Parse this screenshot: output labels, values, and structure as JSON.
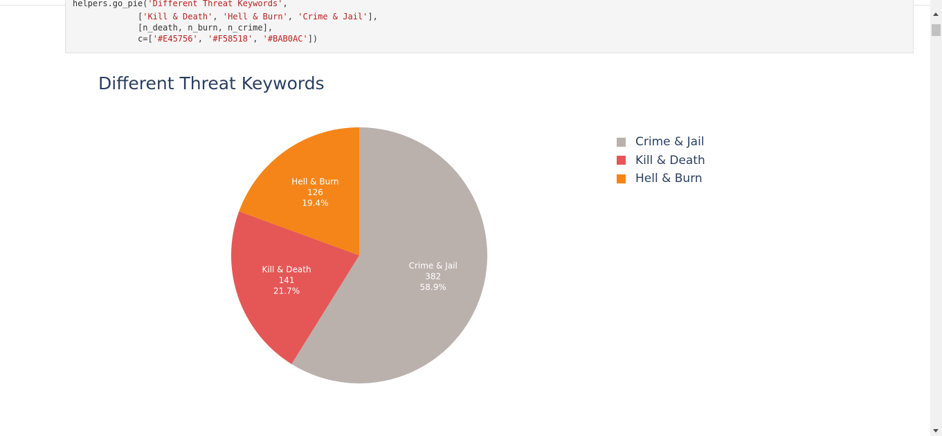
{
  "code": {
    "line1_prefix": "helpers.go_pie(",
    "line1_string": "'Different Threat Keywords'",
    "line1_suffix": ",",
    "line2_open": "[",
    "line2_s1": "'Kill & Death'",
    "line2_s2": "'Hell & Burn'",
    "line2_s3": "'Crime & Jail'",
    "line2_close": "],",
    "line3": "[n_death, n_burn, n_crime],",
    "line4_prefix": "c=[",
    "line4_c1": "'#E45756'",
    "line4_c2": "'#F58518'",
    "line4_c3": "'#BAB0AC'",
    "line4_close": "])",
    "sep": ", "
  },
  "chart_data": {
    "type": "pie",
    "title": "Different Threat Keywords",
    "slices": [
      {
        "label": "Crime & Jail",
        "value": 382,
        "percent": "58.9%",
        "color": "#BAB0AC"
      },
      {
        "label": "Kill & Death",
        "value": 141,
        "percent": "21.7%",
        "color": "#E45756"
      },
      {
        "label": "Hell & Burn",
        "value": 126,
        "percent": "19.4%",
        "color": "#F58518"
      }
    ],
    "legend": {
      "placement": "right",
      "items": [
        "Crime & Jail",
        "Kill & Death",
        "Hell & Burn"
      ]
    }
  }
}
